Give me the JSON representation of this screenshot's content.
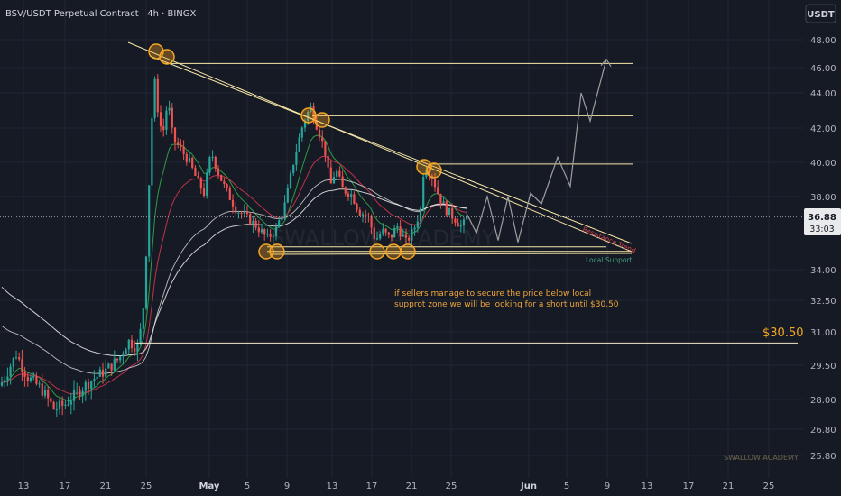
{
  "header": {
    "title": "BSV/USDT Perpetual Contract · 4h · BINGX",
    "currency_button": "USDT"
  },
  "price_tag": {
    "price": "36.88",
    "countdown": "33:03"
  },
  "colors": {
    "up": "#26a69a",
    "down": "#ef5350",
    "resistance": "#f7e7a8",
    "pivot": "#f5a623",
    "ema_fast": "#2e9b43",
    "ema_mid": "#c0314a",
    "ma_slow": "#cfcfcf",
    "target": "#f5a623"
  },
  "chart_data": {
    "type": "candlestick",
    "y_ticks": [
      "48.00",
      "46.00",
      "44.00",
      "42.00",
      "40.00",
      "38.00",
      "34.00",
      "32.50",
      "31.00",
      "29.50",
      "28.00",
      "26.80",
      "25.80"
    ],
    "y_tick_values": [
      48.0,
      46.0,
      44.0,
      42.0,
      40.0,
      38.0,
      34.0,
      32.5,
      31.0,
      29.5,
      28.0,
      26.8,
      25.8
    ],
    "x_ticks": [
      "13",
      "17",
      "21",
      "25",
      "May",
      "5",
      "9",
      "13",
      "17",
      "21",
      "25",
      "Jun",
      "5",
      "9",
      "13",
      "17",
      "21",
      "25"
    ],
    "current_price": 36.88,
    "resistance_levels": [
      46.3,
      42.7,
      39.9
    ],
    "local_support": 35.25,
    "target_level": 30.5,
    "target_label": "$30.50",
    "annotations": {
      "resistance_trend": "Resistance Trend",
      "local_support": "Local Support",
      "note_line1": "if sellers manage to secure the price below local",
      "note_line2": "supprot zone we will be looking for a short until $30.50",
      "watermark": "SWALLOW ACADEMY",
      "watermark_center": "SWALLOW ACADEMY"
    },
    "resistance_trend": {
      "from": {
        "date": "Apr 25",
        "price": 47.0
      },
      "to": {
        "date": "Jun 11",
        "price": 35.0
      }
    },
    "support_trend": {
      "from": {
        "date": "May 7",
        "price": 35.3
      },
      "to": {
        "date": "Jun 11",
        "price": 35.1
      }
    }
  }
}
